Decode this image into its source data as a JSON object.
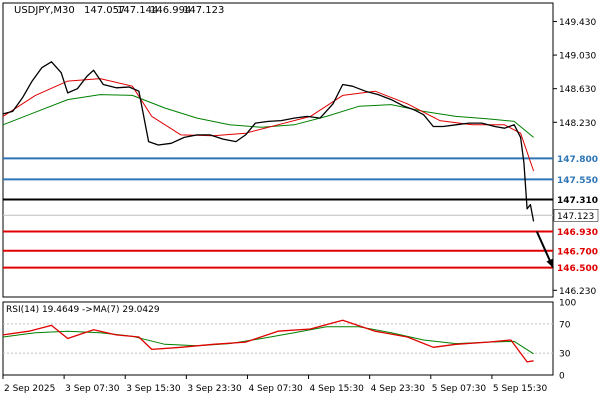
{
  "chart_data": {
    "type": "candlestick",
    "symbol": "USDJPY,M30",
    "ohlc_header": {
      "open": "147.057",
      "high": "147.144",
      "low": "146.994",
      "close": "147.123"
    },
    "x_tick_labels": [
      "2 Sep 2025",
      "3 Sep 07:30",
      "3 Sep 15:30",
      "3 Sep 23:30",
      "4 Sep 07:30",
      "4 Sep 15:30",
      "4 Sep 23:30",
      "5 Sep 07:30",
      "5 Sep 15:30"
    ],
    "price_axis": {
      "ylim": [
        146.15,
        149.65
      ],
      "tick_values": [
        149.43,
        149.03,
        148.63,
        148.23,
        146.23
      ],
      "tick_labels": [
        "149.430",
        "149.030",
        "148.630",
        "148.230",
        "146.230"
      ]
    },
    "current_price": {
      "value": 147.123,
      "label": "147.123"
    },
    "horizontal_levels": [
      {
        "value": 147.8,
        "label": "147.800",
        "color": "#2e75b6"
      },
      {
        "value": 147.55,
        "label": "147.550",
        "color": "#2e75b6"
      },
      {
        "value": 147.31,
        "label": "147.310",
        "color": "#000000"
      },
      {
        "value": 146.93,
        "label": "146.930",
        "color": "#e00000"
      },
      {
        "value": 146.7,
        "label": "146.700",
        "color": "#e00000"
      },
      {
        "value": 146.5,
        "label": "146.500",
        "color": "#e00000"
      }
    ],
    "price_series": [
      {
        "x": 0,
        "y": 148.33
      },
      {
        "x": 3,
        "y": 148.36
      },
      {
        "x": 6,
        "y": 148.52
      },
      {
        "x": 9,
        "y": 148.72
      },
      {
        "x": 12,
        "y": 148.88
      },
      {
        "x": 15,
        "y": 148.95
      },
      {
        "x": 18,
        "y": 148.82
      },
      {
        "x": 20,
        "y": 148.58
      },
      {
        "x": 23,
        "y": 148.63
      },
      {
        "x": 26,
        "y": 148.78
      },
      {
        "x": 28,
        "y": 148.85
      },
      {
        "x": 31,
        "y": 148.68
      },
      {
        "x": 35,
        "y": 148.64
      },
      {
        "x": 39,
        "y": 148.65
      },
      {
        "x": 42,
        "y": 148.6
      },
      {
        "x": 45,
        "y": 148.0
      },
      {
        "x": 48,
        "y": 147.96
      },
      {
        "x": 52,
        "y": 147.98
      },
      {
        "x": 56,
        "y": 148.05
      },
      {
        "x": 60,
        "y": 148.08
      },
      {
        "x": 64,
        "y": 148.08
      },
      {
        "x": 68,
        "y": 148.03
      },
      {
        "x": 72,
        "y": 148.0
      },
      {
        "x": 75,
        "y": 148.08
      },
      {
        "x": 78,
        "y": 148.22
      },
      {
        "x": 82,
        "y": 148.24
      },
      {
        "x": 86,
        "y": 148.25
      },
      {
        "x": 90,
        "y": 148.28
      },
      {
        "x": 94,
        "y": 148.3
      },
      {
        "x": 98,
        "y": 148.28
      },
      {
        "x": 102,
        "y": 148.45
      },
      {
        "x": 105,
        "y": 148.68
      },
      {
        "x": 108,
        "y": 148.66
      },
      {
        "x": 112,
        "y": 148.6
      },
      {
        "x": 116,
        "y": 148.56
      },
      {
        "x": 120,
        "y": 148.5
      },
      {
        "x": 124,
        "y": 148.42
      },
      {
        "x": 127,
        "y": 148.38
      },
      {
        "x": 130,
        "y": 148.32
      },
      {
        "x": 133,
        "y": 148.18
      },
      {
        "x": 136,
        "y": 148.18
      },
      {
        "x": 140,
        "y": 148.2
      },
      {
        "x": 144,
        "y": 148.22
      },
      {
        "x": 148,
        "y": 148.22
      },
      {
        "x": 152,
        "y": 148.18
      },
      {
        "x": 155,
        "y": 148.16
      },
      {
        "x": 158,
        "y": 148.2
      },
      {
        "x": 160,
        "y": 148.05
      },
      {
        "x": 161,
        "y": 147.75
      },
      {
        "x": 162,
        "y": 147.2
      },
      {
        "x": 163,
        "y": 147.25
      },
      {
        "x": 164,
        "y": 147.05
      }
    ],
    "ma_fast": [
      {
        "x": 0,
        "y": 148.3
      },
      {
        "x": 10,
        "y": 148.55
      },
      {
        "x": 20,
        "y": 148.72
      },
      {
        "x": 30,
        "y": 148.75
      },
      {
        "x": 40,
        "y": 148.66
      },
      {
        "x": 46,
        "y": 148.3
      },
      {
        "x": 55,
        "y": 148.08
      },
      {
        "x": 65,
        "y": 148.07
      },
      {
        "x": 75,
        "y": 148.1
      },
      {
        "x": 85,
        "y": 148.2
      },
      {
        "x": 95,
        "y": 148.3
      },
      {
        "x": 105,
        "y": 148.55
      },
      {
        "x": 115,
        "y": 148.6
      },
      {
        "x": 125,
        "y": 148.45
      },
      {
        "x": 135,
        "y": 148.25
      },
      {
        "x": 145,
        "y": 148.2
      },
      {
        "x": 155,
        "y": 148.2
      },
      {
        "x": 160,
        "y": 148.1
      },
      {
        "x": 164,
        "y": 147.65
      }
    ],
    "ma_slow": [
      {
        "x": 0,
        "y": 148.2
      },
      {
        "x": 10,
        "y": 148.35
      },
      {
        "x": 20,
        "y": 148.5
      },
      {
        "x": 30,
        "y": 148.56
      },
      {
        "x": 40,
        "y": 148.55
      },
      {
        "x": 50,
        "y": 148.4
      },
      {
        "x": 60,
        "y": 148.28
      },
      {
        "x": 70,
        "y": 148.2
      },
      {
        "x": 80,
        "y": 148.17
      },
      {
        "x": 90,
        "y": 148.2
      },
      {
        "x": 100,
        "y": 148.3
      },
      {
        "x": 110,
        "y": 148.42
      },
      {
        "x": 120,
        "y": 148.44
      },
      {
        "x": 130,
        "y": 148.36
      },
      {
        "x": 140,
        "y": 148.3
      },
      {
        "x": 150,
        "y": 148.27
      },
      {
        "x": 158,
        "y": 148.24
      },
      {
        "x": 164,
        "y": 148.05
      }
    ],
    "projection_arrow": {
      "from": {
        "x": 165,
        "y": 146.93
      },
      "to": {
        "x": 170,
        "y": 146.5
      }
    },
    "rsi_panel": {
      "label": "RSI(14) 19.4649 ->MA(7) 29.0429",
      "ylim": [
        0,
        100
      ],
      "tick_values": [
        100,
        70,
        30,
        0
      ],
      "tick_labels": [
        "100",
        "70",
        "30",
        "0"
      ],
      "rsi": [
        {
          "x": 0,
          "y": 55
        },
        {
          "x": 8,
          "y": 60
        },
        {
          "x": 15,
          "y": 68
        },
        {
          "x": 20,
          "y": 50
        },
        {
          "x": 28,
          "y": 62
        },
        {
          "x": 35,
          "y": 55
        },
        {
          "x": 42,
          "y": 52
        },
        {
          "x": 46,
          "y": 35
        },
        {
          "x": 55,
          "y": 38
        },
        {
          "x": 65,
          "y": 42
        },
        {
          "x": 75,
          "y": 45
        },
        {
          "x": 85,
          "y": 60
        },
        {
          "x": 95,
          "y": 63
        },
        {
          "x": 105,
          "y": 75
        },
        {
          "x": 115,
          "y": 60
        },
        {
          "x": 125,
          "y": 52
        },
        {
          "x": 133,
          "y": 38
        },
        {
          "x": 140,
          "y": 42
        },
        {
          "x": 150,
          "y": 45
        },
        {
          "x": 157,
          "y": 48
        },
        {
          "x": 160,
          "y": 30
        },
        {
          "x": 162,
          "y": 18
        },
        {
          "x": 164,
          "y": 19.46
        }
      ],
      "rsi_ma": [
        {
          "x": 0,
          "y": 52
        },
        {
          "x": 10,
          "y": 58
        },
        {
          "x": 20,
          "y": 60
        },
        {
          "x": 30,
          "y": 58
        },
        {
          "x": 40,
          "y": 53
        },
        {
          "x": 50,
          "y": 42
        },
        {
          "x": 60,
          "y": 40
        },
        {
          "x": 70,
          "y": 43
        },
        {
          "x": 80,
          "y": 50
        },
        {
          "x": 90,
          "y": 58
        },
        {
          "x": 100,
          "y": 66
        },
        {
          "x": 110,
          "y": 66
        },
        {
          "x": 120,
          "y": 58
        },
        {
          "x": 130,
          "y": 48
        },
        {
          "x": 140,
          "y": 43
        },
        {
          "x": 150,
          "y": 45
        },
        {
          "x": 158,
          "y": 46
        },
        {
          "x": 164,
          "y": 29.04
        }
      ]
    },
    "colors": {
      "price": "#000000",
      "ma_fast": "#e00000",
      "ma_slow": "#008000",
      "rsi": "#e00000",
      "rsi_ma": "#008000",
      "level_blue": "#2e75b6",
      "level_black": "#000000",
      "level_red": "#e00000",
      "grid": "#c0c0c0",
      "current_price_tag": "#ffffff"
    }
  }
}
